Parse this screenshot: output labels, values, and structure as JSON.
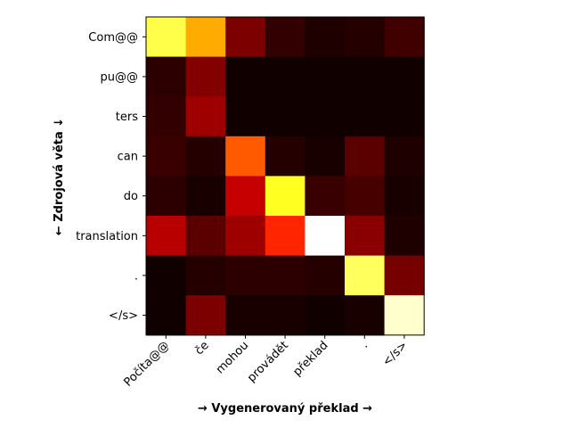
{
  "chart_data": {
    "type": "heatmap",
    "colormap": "hot",
    "rows": [
      "Com@@",
      "pu@@",
      "ters",
      "can",
      "do",
      "translation",
      ".",
      "</s>"
    ],
    "cols": [
      "Počíta@@",
      "če",
      "mohou",
      "provádět",
      "překlad",
      ".",
      "</s>"
    ],
    "values": [
      [
        0.82,
        0.62,
        0.17,
        0.06,
        0.03,
        0.04,
        0.08
      ],
      [
        0.05,
        0.18,
        0.01,
        0.01,
        0.01,
        0.01,
        0.01
      ],
      [
        0.06,
        0.22,
        0.01,
        0.01,
        0.01,
        0.01,
        0.01
      ],
      [
        0.07,
        0.04,
        0.5,
        0.04,
        0.02,
        0.12,
        0.03
      ],
      [
        0.05,
        0.02,
        0.28,
        0.78,
        0.07,
        0.09,
        0.02
      ],
      [
        0.26,
        0.12,
        0.22,
        0.42,
        1.0,
        0.19,
        0.03
      ],
      [
        0.01,
        0.04,
        0.05,
        0.05,
        0.04,
        0.84,
        0.16
      ],
      [
        0.01,
        0.17,
        0.02,
        0.02,
        0.01,
        0.02,
        0.95
      ]
    ],
    "xlabel": "→ Vygenerovaný překlad →",
    "ylabel": "← Zdrojová věta ↓"
  }
}
